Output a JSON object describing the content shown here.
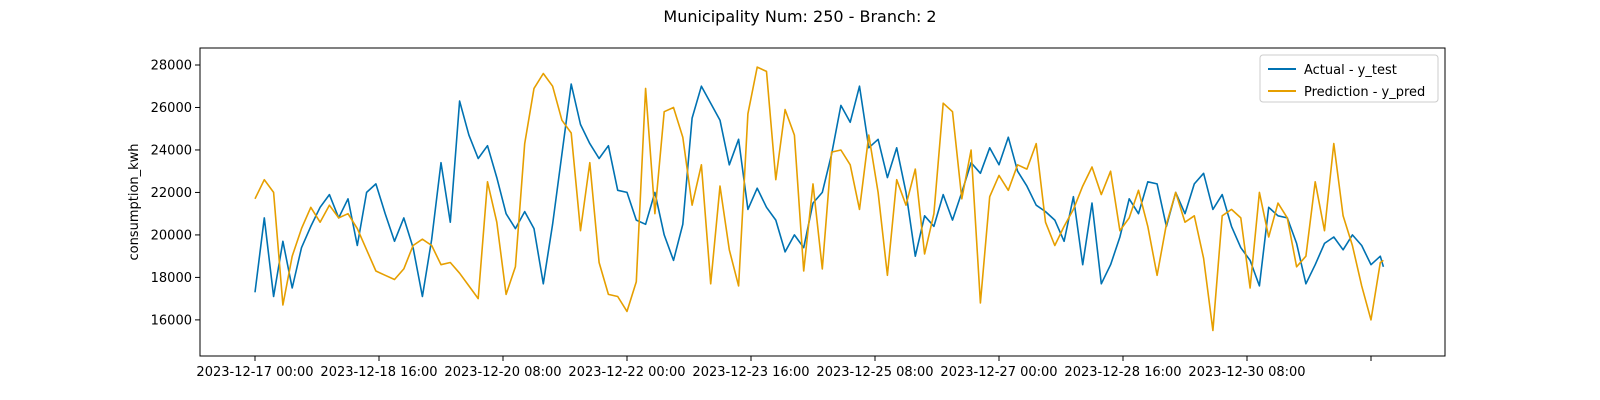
{
  "chart_data": {
    "type": "line",
    "title": "Municipality Num: 250 - Branch: 2",
    "xlabel": "",
    "ylabel": "consumption_kwh",
    "xlim": [
      "2023-12-17 00:00",
      "2024-01-01 04:00"
    ],
    "ylim": [
      14300,
      28800
    ],
    "grid": false,
    "legend_position": "top-right",
    "x_tick_labels": [
      "2023-12-17 00:00",
      "2023-12-18 16:00",
      "2023-12-20 08:00",
      "2023-12-22 00:00",
      "2023-12-23 16:00",
      "2023-12-25 08:00",
      "2023-12-27 00:00",
      "2023-12-28 16:00",
      "2023-12-30 08:00",
      ""
    ],
    "y_ticks": [
      16000,
      18000,
      20000,
      22000,
      24000,
      26000,
      28000
    ],
    "series": [
      {
        "name": "Actual - y_test",
        "color": "#0072B2",
        "points": [
          [
            "2023-12-17 00:00",
            17300
          ],
          [
            "2023-12-17 03:00",
            20800
          ],
          [
            "2023-12-17 06:00",
            17100
          ],
          [
            "2023-12-17 09:00",
            19700
          ],
          [
            "2023-12-17 12:00",
            17500
          ],
          [
            "2023-12-17 15:00",
            19400
          ],
          [
            "2023-12-17 18:00",
            20400
          ],
          [
            "2023-12-17 21:00",
            21300
          ],
          [
            "2023-12-18 00:00",
            21900
          ],
          [
            "2023-12-18 03:00",
            20800
          ],
          [
            "2023-12-18 06:00",
            21700
          ],
          [
            "2023-12-18 09:00",
            19500
          ],
          [
            "2023-12-18 12:00",
            22000
          ],
          [
            "2023-12-18 15:00",
            22400
          ],
          [
            "2023-12-18 18:00",
            21000
          ],
          [
            "2023-12-18 21:00",
            19700
          ],
          [
            "2023-12-19 00:00",
            20800
          ],
          [
            "2023-12-19 03:00",
            19400
          ],
          [
            "2023-12-19 06:00",
            17100
          ],
          [
            "2023-12-19 09:00",
            19800
          ],
          [
            "2023-12-19 12:00",
            23400
          ],
          [
            "2023-12-19 15:00",
            20600
          ],
          [
            "2023-12-19 18:00",
            26300
          ],
          [
            "2023-12-19 21:00",
            24700
          ],
          [
            "2023-12-20 00:00",
            23600
          ],
          [
            "2023-12-20 03:00",
            24200
          ],
          [
            "2023-12-20 06:00",
            22700
          ],
          [
            "2023-12-20 09:00",
            21000
          ],
          [
            "2023-12-20 12:00",
            20300
          ],
          [
            "2023-12-20 15:00",
            21100
          ],
          [
            "2023-12-20 18:00",
            20300
          ],
          [
            "2023-12-20 21:00",
            17700
          ],
          [
            "2023-12-21 00:00",
            20500
          ],
          [
            "2023-12-21 03:00",
            23800
          ],
          [
            "2023-12-21 06:00",
            27100
          ],
          [
            "2023-12-21 09:00",
            25200
          ],
          [
            "2023-12-21 12:00",
            24300
          ],
          [
            "2023-12-21 15:00",
            23600
          ],
          [
            "2023-12-21 18:00",
            24200
          ],
          [
            "2023-12-21 21:00",
            22100
          ],
          [
            "2023-12-22 00:00",
            22000
          ],
          [
            "2023-12-22 03:00",
            20700
          ],
          [
            "2023-12-22 06:00",
            20500
          ],
          [
            "2023-12-22 09:00",
            22000
          ],
          [
            "2023-12-22 12:00",
            20000
          ],
          [
            "2023-12-22 15:00",
            18800
          ],
          [
            "2023-12-22 18:00",
            20500
          ],
          [
            "2023-12-22 21:00",
            25500
          ],
          [
            "2023-12-23 00:00",
            27000
          ],
          [
            "2023-12-23 03:00",
            26200
          ],
          [
            "2023-12-23 06:00",
            25400
          ],
          [
            "2023-12-23 09:00",
            23300
          ],
          [
            "2023-12-23 12:00",
            24500
          ],
          [
            "2023-12-23 15:00",
            21200
          ],
          [
            "2023-12-23 18:00",
            22200
          ],
          [
            "2023-12-23 21:00",
            21300
          ],
          [
            "2023-12-24 00:00",
            20700
          ],
          [
            "2023-12-24 03:00",
            19200
          ],
          [
            "2023-12-24 06:00",
            20000
          ],
          [
            "2023-12-24 09:00",
            19400
          ],
          [
            "2023-12-24 12:00",
            21500
          ],
          [
            "2023-12-24 15:00",
            22000
          ],
          [
            "2023-12-24 18:00",
            23800
          ],
          [
            "2023-12-24 21:00",
            26100
          ],
          [
            "2023-12-25 00:00",
            25300
          ],
          [
            "2023-12-25 03:00",
            27000
          ],
          [
            "2023-12-25 06:00",
            24100
          ],
          [
            "2023-12-25 09:00",
            24500
          ],
          [
            "2023-12-25 12:00",
            22700
          ],
          [
            "2023-12-25 15:00",
            24100
          ],
          [
            "2023-12-25 18:00",
            22000
          ],
          [
            "2023-12-25 21:00",
            19000
          ],
          [
            "2023-12-26 00:00",
            20900
          ],
          [
            "2023-12-26 03:00",
            20400
          ],
          [
            "2023-12-26 06:00",
            21900
          ],
          [
            "2023-12-26 09:00",
            20700
          ],
          [
            "2023-12-26 12:00",
            22000
          ],
          [
            "2023-12-26 15:00",
            23400
          ],
          [
            "2023-12-26 18:00",
            22900
          ],
          [
            "2023-12-26 21:00",
            24100
          ],
          [
            "2023-12-27 00:00",
            23300
          ],
          [
            "2023-12-27 03:00",
            24600
          ],
          [
            "2023-12-27 06:00",
            23000
          ],
          [
            "2023-12-27 09:00",
            22300
          ],
          [
            "2023-12-27 12:00",
            21400
          ],
          [
            "2023-12-27 15:00",
            21100
          ],
          [
            "2023-12-27 18:00",
            20700
          ],
          [
            "2023-12-27 21:00",
            19700
          ],
          [
            "2023-12-28 00:00",
            21800
          ],
          [
            "2023-12-28 03:00",
            18600
          ],
          [
            "2023-12-28 06:00",
            21500
          ],
          [
            "2023-12-28 09:00",
            17700
          ],
          [
            "2023-12-28 12:00",
            18600
          ],
          [
            "2023-12-28 15:00",
            19900
          ],
          [
            "2023-12-28 18:00",
            21700
          ],
          [
            "2023-12-28 21:00",
            21000
          ],
          [
            "2023-12-29 00:00",
            22500
          ],
          [
            "2023-12-29 03:00",
            22400
          ],
          [
            "2023-12-29 06:00",
            20400
          ],
          [
            "2023-12-29 09:00",
            22000
          ],
          [
            "2023-12-29 12:00",
            21000
          ],
          [
            "2023-12-29 15:00",
            22400
          ],
          [
            "2023-12-29 18:00",
            22900
          ],
          [
            "2023-12-29 21:00",
            21200
          ],
          [
            "2023-12-30 00:00",
            21900
          ],
          [
            "2023-12-30 03:00",
            20400
          ],
          [
            "2023-12-30 06:00",
            19400
          ],
          [
            "2023-12-30 09:00",
            18800
          ],
          [
            "2023-12-30 12:00",
            17600
          ],
          [
            "2023-12-30 15:00",
            21300
          ],
          [
            "2023-12-30 18:00",
            20900
          ],
          [
            "2023-12-30 21:00",
            20800
          ],
          [
            "2023-12-31 00:00",
            19600
          ],
          [
            "2023-12-31 03:00",
            17700
          ],
          [
            "2023-12-31 06:00",
            18600
          ],
          [
            "2023-12-31 09:00",
            19600
          ],
          [
            "2023-12-31 12:00",
            19900
          ],
          [
            "2023-12-31 15:00",
            19300
          ],
          [
            "2023-12-31 18:00",
            20000
          ],
          [
            "2023-12-31 21:00",
            19500
          ],
          [
            "2024-01-01 00:00",
            18600
          ],
          [
            "2024-01-01 03:00",
            19000
          ],
          [
            "2024-01-01 04:00",
            18500
          ]
        ]
      },
      {
        "name": "Prediction - y_pred",
        "color": "#E69F00",
        "points": [
          [
            "2023-12-17 00:00",
            21700
          ],
          [
            "2023-12-17 03:00",
            22600
          ],
          [
            "2023-12-17 06:00",
            22000
          ],
          [
            "2023-12-17 09:00",
            16700
          ],
          [
            "2023-12-17 12:00",
            19000
          ],
          [
            "2023-12-17 15:00",
            20300
          ],
          [
            "2023-12-17 18:00",
            21300
          ],
          [
            "2023-12-17 21:00",
            20600
          ],
          [
            "2023-12-18 00:00",
            21400
          ],
          [
            "2023-12-18 03:00",
            20800
          ],
          [
            "2023-12-18 06:00",
            21000
          ],
          [
            "2023-12-18 09:00",
            20300
          ],
          [
            "2023-12-18 12:00",
            19300
          ],
          [
            "2023-12-18 15:00",
            18300
          ],
          [
            "2023-12-18 18:00",
            18100
          ],
          [
            "2023-12-18 21:00",
            17900
          ],
          [
            "2023-12-19 00:00",
            18400
          ],
          [
            "2023-12-19 03:00",
            19500
          ],
          [
            "2023-12-19 06:00",
            19800
          ],
          [
            "2023-12-19 09:00",
            19500
          ],
          [
            "2023-12-19 12:00",
            18600
          ],
          [
            "2023-12-19 15:00",
            18700
          ],
          [
            "2023-12-19 18:00",
            18200
          ],
          [
            "2023-12-19 21:00",
            17600
          ],
          [
            "2023-12-20 00:00",
            17000
          ],
          [
            "2023-12-20 03:00",
            22500
          ],
          [
            "2023-12-20 06:00",
            20600
          ],
          [
            "2023-12-20 09:00",
            17200
          ],
          [
            "2023-12-20 12:00",
            18500
          ],
          [
            "2023-12-20 15:00",
            24300
          ],
          [
            "2023-12-20 18:00",
            26900
          ],
          [
            "2023-12-20 21:00",
            27600
          ],
          [
            "2023-12-21 00:00",
            27000
          ],
          [
            "2023-12-21 03:00",
            25400
          ],
          [
            "2023-12-21 06:00",
            24800
          ],
          [
            "2023-12-21 09:00",
            20200
          ],
          [
            "2023-12-21 12:00",
            23400
          ],
          [
            "2023-12-21 15:00",
            18700
          ],
          [
            "2023-12-21 18:00",
            17200
          ],
          [
            "2023-12-21 21:00",
            17100
          ],
          [
            "2023-12-22 00:00",
            16400
          ],
          [
            "2023-12-22 03:00",
            17800
          ],
          [
            "2023-12-22 06:00",
            26900
          ],
          [
            "2023-12-22 09:00",
            21000
          ],
          [
            "2023-12-22 12:00",
            25800
          ],
          [
            "2023-12-22 15:00",
            26000
          ],
          [
            "2023-12-22 18:00",
            24600
          ],
          [
            "2023-12-22 21:00",
            21400
          ],
          [
            "2023-12-23 00:00",
            23300
          ],
          [
            "2023-12-23 03:00",
            17700
          ],
          [
            "2023-12-23 06:00",
            22300
          ],
          [
            "2023-12-23 09:00",
            19300
          ],
          [
            "2023-12-23 12:00",
            17600
          ],
          [
            "2023-12-23 15:00",
            25700
          ],
          [
            "2023-12-23 18:00",
            27900
          ],
          [
            "2023-12-23 21:00",
            27700
          ],
          [
            "2023-12-24 00:00",
            22600
          ],
          [
            "2023-12-24 03:00",
            25900
          ],
          [
            "2023-12-24 06:00",
            24700
          ],
          [
            "2023-12-24 09:00",
            18300
          ],
          [
            "2023-12-24 12:00",
            22400
          ],
          [
            "2023-12-24 15:00",
            18400
          ],
          [
            "2023-12-24 18:00",
            23900
          ],
          [
            "2023-12-24 21:00",
            24000
          ],
          [
            "2023-12-25 00:00",
            23300
          ],
          [
            "2023-12-25 03:00",
            21200
          ],
          [
            "2023-12-25 06:00",
            24700
          ],
          [
            "2023-12-25 09:00",
            22000
          ],
          [
            "2023-12-25 12:00",
            18100
          ],
          [
            "2023-12-25 15:00",
            22600
          ],
          [
            "2023-12-25 18:00",
            21400
          ],
          [
            "2023-12-25 21:00",
            23100
          ],
          [
            "2023-12-26 00:00",
            19100
          ],
          [
            "2023-12-26 03:00",
            21000
          ],
          [
            "2023-12-26 06:00",
            26200
          ],
          [
            "2023-12-26 09:00",
            25800
          ],
          [
            "2023-12-26 12:00",
            21700
          ],
          [
            "2023-12-26 15:00",
            24000
          ],
          [
            "2023-12-26 18:00",
            16800
          ],
          [
            "2023-12-26 21:00",
            21800
          ],
          [
            "2023-12-27 00:00",
            22800
          ],
          [
            "2023-12-27 03:00",
            22100
          ],
          [
            "2023-12-27 06:00",
            23300
          ],
          [
            "2023-12-27 09:00",
            23100
          ],
          [
            "2023-12-27 12:00",
            24300
          ],
          [
            "2023-12-27 15:00",
            20600
          ],
          [
            "2023-12-27 18:00",
            19500
          ],
          [
            "2023-12-27 21:00",
            20400
          ],
          [
            "2023-12-28 00:00",
            21200
          ],
          [
            "2023-12-28 03:00",
            22300
          ],
          [
            "2023-12-28 06:00",
            23200
          ],
          [
            "2023-12-28 09:00",
            21900
          ],
          [
            "2023-12-28 12:00",
            23000
          ],
          [
            "2023-12-28 15:00",
            20200
          ],
          [
            "2023-12-28 18:00",
            20800
          ],
          [
            "2023-12-28 21:00",
            22100
          ],
          [
            "2023-12-29 00:00",
            20400
          ],
          [
            "2023-12-29 03:00",
            18100
          ],
          [
            "2023-12-29 06:00",
            20500
          ],
          [
            "2023-12-29 09:00",
            22000
          ],
          [
            "2023-12-29 12:00",
            20600
          ],
          [
            "2023-12-29 15:00",
            20900
          ],
          [
            "2023-12-29 18:00",
            18900
          ],
          [
            "2023-12-29 21:00",
            15500
          ],
          [
            "2023-12-30 00:00",
            20900
          ],
          [
            "2023-12-30 03:00",
            21200
          ],
          [
            "2023-12-30 06:00",
            20800
          ],
          [
            "2023-12-30 09:00",
            17500
          ],
          [
            "2023-12-30 12:00",
            22000
          ],
          [
            "2023-12-30 15:00",
            19900
          ],
          [
            "2023-12-30 18:00",
            21500
          ],
          [
            "2023-12-30 21:00",
            20800
          ],
          [
            "2023-12-31 00:00",
            18500
          ],
          [
            "2023-12-31 03:00",
            19000
          ],
          [
            "2023-12-31 06:00",
            22500
          ],
          [
            "2023-12-31 09:00",
            20200
          ],
          [
            "2023-12-31 12:00",
            24300
          ],
          [
            "2023-12-31 15:00",
            20900
          ],
          [
            "2023-12-31 18:00",
            19500
          ],
          [
            "2023-12-31 21:00",
            17600
          ],
          [
            "2024-01-01 00:00",
            16000
          ],
          [
            "2024-01-01 03:00",
            18700
          ],
          [
            "2024-01-01 04:00",
            18800
          ]
        ]
      }
    ]
  }
}
